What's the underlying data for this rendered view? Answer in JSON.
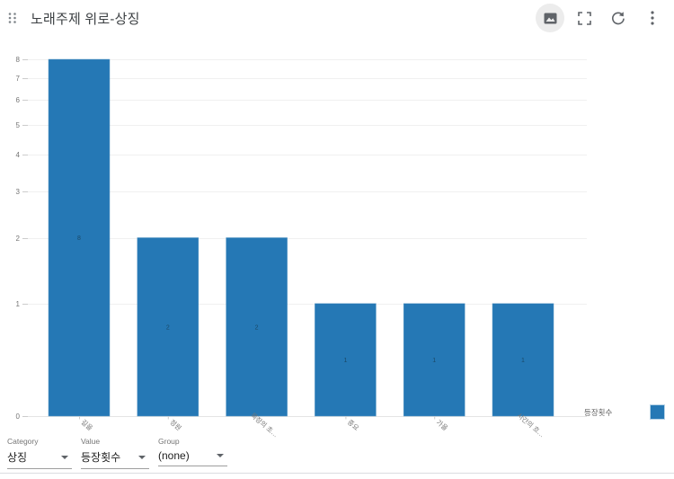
{
  "header": {
    "title": "노래주제 위로-상징",
    "icons": {
      "drag_handle": "drag-handle-icon",
      "image": "image-export-icon",
      "fullscreen": "fullscreen-icon",
      "refresh": "refresh-icon",
      "menu": "kebab-menu-icon"
    }
  },
  "chart_data": {
    "type": "bar",
    "title": "노래주제 위로-상징",
    "categories": [
      "길을",
      "정원",
      "목장의 초…",
      "종요",
      "가을",
      "시간의 흐…"
    ],
    "values": [
      8,
      2,
      2,
      1,
      1,
      1
    ],
    "series_name": "등장횟수",
    "xlabel": "",
    "ylabel": "",
    "ylim": [
      0,
      8
    ],
    "yticks": [
      0,
      1,
      2,
      3,
      4,
      5,
      6,
      7,
      8
    ],
    "scale": "log1p",
    "grid": true,
    "legend_position": "right",
    "bar_color": "#2578b5",
    "bar_edge_color": "#5d9ac6",
    "bar_label_color": "#1a4a68",
    "axis_text_color": "#757575",
    "grid_color": "#f0f0f0",
    "baseline_color": "#e4e4e4"
  },
  "legend": {
    "label": "등장횟수",
    "color": "#2578b5"
  },
  "controls": [
    {
      "label": "Category",
      "value": "상징"
    },
    {
      "label": "Value",
      "value": "등장횟수"
    },
    {
      "label": "Group",
      "value": "(none)"
    }
  ]
}
